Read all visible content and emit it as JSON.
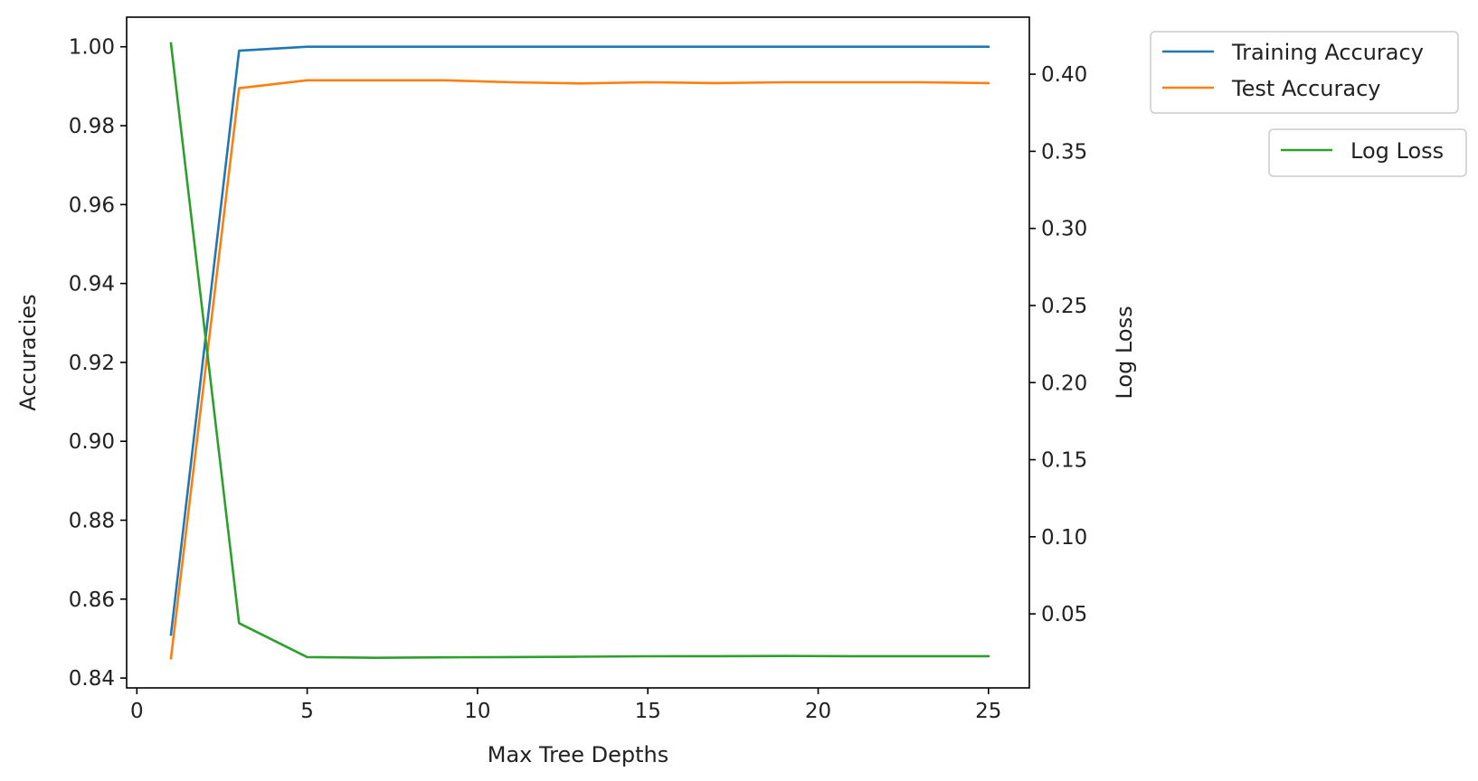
{
  "chart_data": {
    "type": "line",
    "title": "",
    "xlabel": "Max Tree Depths",
    "ylabel_left": "Accuracies",
    "ylabel_right": "Log Loss",
    "xlim": [
      -0.3,
      26.2
    ],
    "ylim_left": [
      0.8375,
      1.0075
    ],
    "ylim_right": [
      0.002,
      0.437
    ],
    "x_ticks": [
      0,
      5,
      10,
      15,
      20,
      25
    ],
    "x_tick_labels": [
      "0",
      "5",
      "10",
      "15",
      "20",
      "25"
    ],
    "y_left_ticks": [
      0.84,
      0.86,
      0.88,
      0.9,
      0.92,
      0.94,
      0.96,
      0.98,
      1.0
    ],
    "y_left_tick_labels": [
      "0.84",
      "0.86",
      "0.88",
      "0.90",
      "0.92",
      "0.94",
      "0.96",
      "0.98",
      "1.00"
    ],
    "y_right_ticks": [
      0.05,
      0.1,
      0.15,
      0.2,
      0.25,
      0.3,
      0.35,
      0.4
    ],
    "y_right_tick_labels": [
      "0.05",
      "0.10",
      "0.15",
      "0.20",
      "0.25",
      "0.30",
      "0.35",
      "0.40"
    ],
    "grid": false,
    "x": [
      1,
      3,
      5,
      7,
      9,
      11,
      13,
      15,
      17,
      19,
      21,
      23,
      25
    ],
    "series": [
      {
        "name": "Training Accuracy",
        "axis": "left",
        "color": "#1f77b4",
        "values": [
          0.851,
          0.999,
          1.0,
          1.0,
          1.0,
          1.0,
          1.0,
          1.0,
          1.0,
          1.0,
          1.0,
          1.0,
          1.0
        ]
      },
      {
        "name": "Test Accuracy",
        "axis": "left",
        "color": "#ff7f0e",
        "values": [
          0.845,
          0.9895,
          0.9915,
          0.9915,
          0.9915,
          0.991,
          0.9907,
          0.991,
          0.9908,
          0.991,
          0.991,
          0.991,
          0.9908
        ]
      },
      {
        "name": "Log Loss",
        "axis": "right",
        "color": "#2ca02c",
        "values": [
          0.42,
          0.044,
          0.022,
          0.0215,
          0.0218,
          0.022,
          0.0222,
          0.0225,
          0.0226,
          0.0227,
          0.0226,
          0.0226,
          0.0226
        ]
      }
    ],
    "legends": [
      {
        "position": "upper-right-outside",
        "entries": [
          "Training Accuracy",
          "Test Accuracy"
        ]
      },
      {
        "position": "right-outside",
        "entries": [
          "Log Loss"
        ]
      }
    ]
  }
}
